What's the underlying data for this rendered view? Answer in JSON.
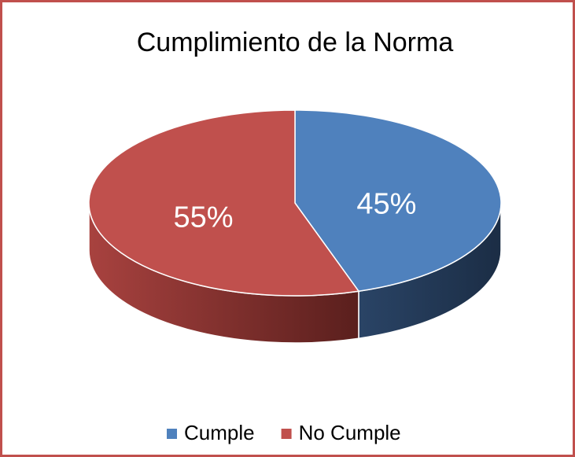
{
  "chart_data": {
    "type": "pie",
    "title": "Cumplimiento de la Norma",
    "categories": [
      "Cumple",
      "No Cumple"
    ],
    "values": [
      45,
      55
    ],
    "value_labels": [
      "45%",
      "55%"
    ],
    "colors": [
      "#4f81bd",
      "#c0504d"
    ],
    "legend": "bottom"
  }
}
